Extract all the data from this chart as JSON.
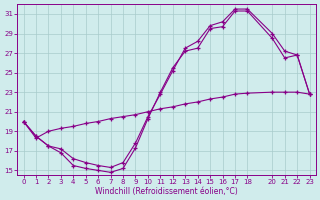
{
  "xlabel": "Windchill (Refroidissement éolien,°C)",
  "bg_color": "#d0ecec",
  "grid_color": "#a8cccc",
  "line_color": "#880088",
  "xlim": [
    -0.5,
    23.5
  ],
  "ylim": [
    14.5,
    32
  ],
  "xticks": [
    0,
    1,
    2,
    3,
    4,
    5,
    6,
    7,
    8,
    9,
    10,
    11,
    12,
    13,
    14,
    15,
    16,
    17,
    18,
    20,
    21,
    22,
    23
  ],
  "yticks": [
    15,
    17,
    19,
    21,
    23,
    25,
    27,
    29,
    31
  ],
  "s1_x": [
    0,
    1,
    2,
    3,
    4,
    5,
    6,
    7,
    8,
    9,
    10,
    11,
    12,
    13,
    14,
    15,
    16,
    17,
    18,
    20,
    21,
    22,
    23
  ],
  "s1_y": [
    20.0,
    18.5,
    17.5,
    16.8,
    15.5,
    15.2,
    15.0,
    14.8,
    15.2,
    17.3,
    20.3,
    23.0,
    25.5,
    27.2,
    27.5,
    29.5,
    29.7,
    31.3,
    31.3,
    28.5,
    26.5,
    26.8,
    22.8
  ],
  "s2_x": [
    0,
    1,
    2,
    3,
    4,
    5,
    6,
    7,
    8,
    9,
    10,
    11,
    12,
    13,
    14,
    15,
    16,
    17,
    18,
    20,
    21,
    22,
    23
  ],
  "s2_y": [
    20.0,
    18.5,
    17.5,
    17.2,
    16.2,
    15.8,
    15.5,
    15.3,
    15.8,
    17.8,
    20.5,
    22.8,
    25.2,
    27.5,
    28.2,
    29.8,
    30.2,
    31.5,
    31.5,
    29.0,
    27.2,
    26.8,
    22.8
  ],
  "s3_x": [
    0,
    1,
    2,
    3,
    4,
    5,
    6,
    7,
    8,
    9,
    10,
    11,
    12,
    13,
    14,
    15,
    16,
    17,
    18,
    20,
    21,
    22,
    23
  ],
  "s3_y": [
    20.0,
    18.3,
    19.0,
    19.3,
    19.5,
    19.8,
    20.0,
    20.3,
    20.5,
    20.7,
    21.0,
    21.3,
    21.5,
    21.8,
    22.0,
    22.3,
    22.5,
    22.8,
    22.9,
    23.0,
    23.0,
    23.0,
    22.8
  ]
}
